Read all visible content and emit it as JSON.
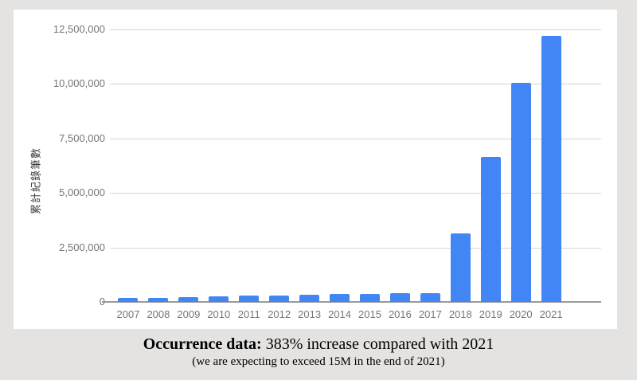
{
  "page": {
    "background_color": "#e4e3e2",
    "panel_color": "#ffffff"
  },
  "chart_data": {
    "type": "bar",
    "title": "",
    "xlabel": "",
    "ylabel": "累計紀錄筆數",
    "categories": [
      "2007",
      "2008",
      "2009",
      "2010",
      "2011",
      "2012",
      "2013",
      "2014",
      "2015",
      "2016",
      "2017",
      "2018",
      "2019",
      "2020",
      "2021"
    ],
    "values": [
      200000,
      200000,
      210000,
      250000,
      300000,
      300000,
      320000,
      370000,
      350000,
      400000,
      400000,
      3150000,
      6650000,
      10050000,
      12200000
    ],
    "ylim": [
      0,
      12500000
    ],
    "ytick_interval": 2500000,
    "ytick_labels_bottom_to_top": [
      "0",
      "2,500,000",
      "5,000,000",
      "7,500,000",
      "10,000,000",
      "12,500,000"
    ],
    "grid": true,
    "legend_position": "none",
    "bar_color": "#4285f4",
    "gridline_color": "#d5d5d5",
    "axis_line_color": "#9a9a9a",
    "tick_label_color": "#757575",
    "axis_title_color": "#3c3c3c"
  },
  "caption": {
    "bold": "Occurrence data:",
    "main": " 383% increase compared with 2021",
    "sub": "(we are expecting to exceed 15M in the end of 2021)"
  }
}
